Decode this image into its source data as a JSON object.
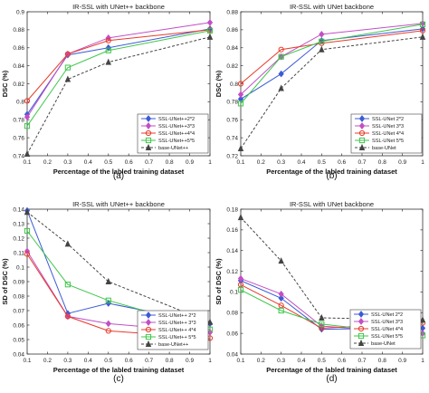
{
  "chart_data": [
    {
      "type": "line",
      "panel_label": "(a)",
      "title": "IR-SSL with UNet++ backbone",
      "xlabel": "Percentage of the labled training dataset",
      "ylabel": "DSC (%)",
      "xlim": [
        0.1,
        1
      ],
      "ylim": [
        0.74,
        0.9
      ],
      "xticks": [
        "0.1",
        "0.2",
        "0.3",
        "0.4",
        "0.5",
        "0.6",
        "0.7",
        "0.8",
        "0.9",
        "1"
      ],
      "yticks": [
        "0.74",
        "0.76",
        "0.78",
        "0.8",
        "0.82",
        "0.84",
        "0.86",
        "0.88",
        "0.9"
      ],
      "grid": false,
      "legend_position": "bottom-right",
      "x": [
        0.1,
        0.3,
        0.5,
        1.0
      ],
      "series": [
        {
          "name": "SSL-UNet++2*2",
          "color": "#3b5bd6",
          "marker": "diamond",
          "dash": false,
          "values": [
            0.786,
            0.852,
            0.86,
            0.881
          ]
        },
        {
          "name": "SSL-UNet++3*3",
          "color": "#c24fc4",
          "marker": "diamond",
          "dash": false,
          "values": [
            0.783,
            0.853,
            0.871,
            0.888
          ]
        },
        {
          "name": "SSL-UNet++4*4",
          "color": "#e83a2a",
          "marker": "circle",
          "dash": false,
          "values": [
            0.801,
            0.853,
            0.868,
            0.88
          ]
        },
        {
          "name": "SSL-UNet++5*5",
          "color": "#3fc64a",
          "marker": "square",
          "dash": false,
          "values": [
            0.773,
            0.838,
            0.857,
            0.879
          ]
        },
        {
          "name": "base-UNet++",
          "color": "#444444",
          "marker": "triangle",
          "dash": true,
          "values": [
            0.742,
            0.825,
            0.844,
            0.872
          ]
        }
      ]
    },
    {
      "type": "line",
      "panel_label": "(b)",
      "title": "IR-SSL with UNet backbone",
      "xlabel": "Percentage of the labled training dataset",
      "ylabel": "DSC (%)",
      "xlim": [
        0.1,
        1
      ],
      "ylim": [
        0.72,
        0.88
      ],
      "xticks": [
        "0.1",
        "0.2",
        "0.3",
        "0.4",
        "0.5",
        "0.6",
        "0.7",
        "0.8",
        "0.9",
        "1"
      ],
      "yticks": [
        "0.72",
        "0.74",
        "0.76",
        "0.78",
        "0.8",
        "0.82",
        "0.84",
        "0.86",
        "0.88"
      ],
      "grid": false,
      "legend_position": "bottom-right",
      "x": [
        0.1,
        0.3,
        0.5,
        1.0
      ],
      "series": [
        {
          "name": "SSL-UNet 2*2",
          "color": "#3b5bd6",
          "marker": "diamond",
          "dash": false,
          "values": [
            0.783,
            0.811,
            0.848,
            0.861
          ]
        },
        {
          "name": "SSL-UNet 3*3",
          "color": "#c24fc4",
          "marker": "diamond",
          "dash": false,
          "values": [
            0.788,
            0.83,
            0.855,
            0.867
          ]
        },
        {
          "name": "SSL-UNet 4*4",
          "color": "#e83a2a",
          "marker": "circle",
          "dash": false,
          "values": [
            0.8,
            0.838,
            0.845,
            0.859
          ]
        },
        {
          "name": "SSL-UNet 5*5",
          "color": "#3fc64a",
          "marker": "square",
          "dash": false,
          "values": [
            0.778,
            0.83,
            0.847,
            0.866
          ]
        },
        {
          "name": "base-UNet",
          "color": "#444444",
          "marker": "triangle",
          "dash": true,
          "values": [
            0.728,
            0.795,
            0.838,
            0.852
          ]
        }
      ]
    },
    {
      "type": "line",
      "panel_label": "(c)",
      "title": "IR-SSL with UNet++ backbone",
      "xlabel": "Percentage of the labled training dataset",
      "ylabel": "SD of DSC (%)",
      "xlim": [
        0.1,
        1
      ],
      "ylim": [
        0.04,
        0.14
      ],
      "xticks": [
        "0.1",
        "0.2",
        "0.3",
        "0.4",
        "0.5",
        "0.6",
        "0.7",
        "0.8",
        "0.9",
        "1"
      ],
      "yticks": [
        "0.04",
        "0.05",
        "0.06",
        "0.07",
        "0.08",
        "0.09",
        "0.1",
        "0.11",
        "0.12",
        "0.13",
        "0.14"
      ],
      "grid": false,
      "legend_position": "bottom-right",
      "x": [
        0.1,
        0.3,
        0.5,
        1.0
      ],
      "series": [
        {
          "name": "SSL-UNet++ 2*2",
          "color": "#3b5bd6",
          "marker": "diamond",
          "dash": false,
          "values": [
            0.139,
            0.068,
            0.075,
            0.061
          ]
        },
        {
          "name": "SSL-UNet++ 3*3",
          "color": "#c24fc4",
          "marker": "diamond",
          "dash": false,
          "values": [
            0.111,
            0.066,
            0.061,
            0.055
          ]
        },
        {
          "name": "SSL-UNet++ 4*4",
          "color": "#e83a2a",
          "marker": "circle",
          "dash": false,
          "values": [
            0.109,
            0.066,
            0.056,
            0.051
          ]
        },
        {
          "name": "SSL-UNet++ 5*5",
          "color": "#3fc64a",
          "marker": "square",
          "dash": false,
          "values": [
            0.125,
            0.088,
            0.077,
            0.057
          ]
        },
        {
          "name": "base-UNet++",
          "color": "#444444",
          "marker": "triangle",
          "dash": true,
          "values": [
            0.138,
            0.116,
            0.09,
            0.062
          ]
        }
      ]
    },
    {
      "type": "line",
      "panel_label": "(d)",
      "title": "IR-SSL with UNet backbone",
      "xlabel": "Percentage of the labled training dataset",
      "ylabel": "SD of DSC (%)",
      "xlim": [
        0.1,
        1
      ],
      "ylim": [
        0.04,
        0.18
      ],
      "xticks": [
        "0.1",
        "0.2",
        "0.3",
        "0.4",
        "0.5",
        "0.6",
        "0.7",
        "0.8",
        "0.9",
        "1"
      ],
      "yticks": [
        "0.04",
        "0.06",
        "0.08",
        "0.1",
        "0.12",
        "0.14",
        "0.16",
        "0.18"
      ],
      "grid": false,
      "legend_position": "right",
      "x": [
        0.1,
        0.3,
        0.5,
        1.0
      ],
      "series": [
        {
          "name": "SSL-UNet 2*2",
          "color": "#3b5bd6",
          "marker": "diamond",
          "dash": false,
          "values": [
            0.111,
            0.094,
            0.064,
            0.065
          ]
        },
        {
          "name": "SSL-UNet 3*3",
          "color": "#c24fc4",
          "marker": "diamond",
          "dash": false,
          "values": [
            0.113,
            0.098,
            0.067,
            0.06
          ]
        },
        {
          "name": "SSL-UNet 4*4",
          "color": "#e83a2a",
          "marker": "circle",
          "dash": false,
          "values": [
            0.107,
            0.087,
            0.065,
            0.07
          ]
        },
        {
          "name": "SSL-UNet 5*5",
          "color": "#3fc64a",
          "marker": "square",
          "dash": false,
          "values": [
            0.102,
            0.082,
            0.069,
            0.058
          ]
        },
        {
          "name": "base-UNet",
          "color": "#444444",
          "marker": "triangle",
          "dash": true,
          "values": [
            0.172,
            0.13,
            0.075,
            0.073
          ]
        }
      ]
    }
  ]
}
